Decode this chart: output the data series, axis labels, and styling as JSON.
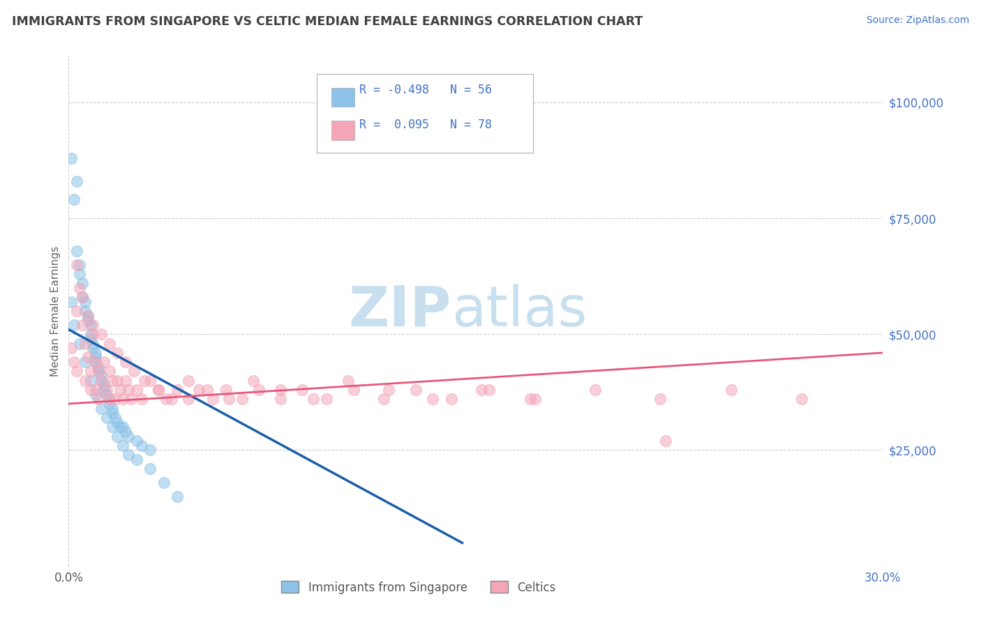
{
  "title": "IMMIGRANTS FROM SINGAPORE VS CELTIC MEDIAN FEMALE EARNINGS CORRELATION CHART",
  "source": "Source: ZipAtlas.com",
  "ylabel": "Median Female Earnings",
  "xlim": [
    0.0,
    0.3
  ],
  "ylim": [
    0,
    110000
  ],
  "ytick_positions": [
    0,
    25000,
    50000,
    75000,
    100000
  ],
  "ytick_labels": [
    "",
    "$25,000",
    "$50,000",
    "$75,000",
    "$100,000"
  ],
  "legend_r1": "R = -0.498",
  "legend_n1": "N = 56",
  "legend_r2": "R =  0.095",
  "legend_n2": "N = 78",
  "color_blue": "#8dc3e8",
  "color_pink": "#f4a6b8",
  "color_blue_line": "#1a5fa8",
  "color_pink_line": "#e8567a",
  "color_title": "#404040",
  "color_axis_label": "#666666",
  "color_source": "#4472c4",
  "color_ytick_label": "#4472c4",
  "color_xtick_right": "#4472c4",
  "color_xtick_left": "#555555",
  "watermark_color": "#c8dff0",
  "background_color": "#ffffff",
  "grid_color": "#cccccc",
  "sg_x": [
    0.001,
    0.003,
    0.002,
    0.003,
    0.004,
    0.004,
    0.005,
    0.005,
    0.006,
    0.006,
    0.007,
    0.007,
    0.008,
    0.008,
    0.008,
    0.009,
    0.009,
    0.01,
    0.01,
    0.01,
    0.011,
    0.011,
    0.012,
    0.012,
    0.013,
    0.013,
    0.014,
    0.015,
    0.015,
    0.016,
    0.016,
    0.017,
    0.018,
    0.019,
    0.02,
    0.021,
    0.022,
    0.025,
    0.027,
    0.03,
    0.001,
    0.002,
    0.004,
    0.006,
    0.008,
    0.01,
    0.012,
    0.014,
    0.016,
    0.018,
    0.02,
    0.022,
    0.025,
    0.03,
    0.035,
    0.04
  ],
  "sg_y": [
    88000,
    83000,
    79000,
    68000,
    65000,
    63000,
    61000,
    58000,
    57000,
    55000,
    54000,
    53000,
    52000,
    50000,
    49000,
    48000,
    47000,
    46000,
    45000,
    44000,
    43000,
    42000,
    41000,
    40000,
    39000,
    38000,
    37000,
    36000,
    35000,
    34000,
    33000,
    32000,
    31000,
    30000,
    30000,
    29000,
    28000,
    27000,
    26000,
    25000,
    57000,
    52000,
    48000,
    44000,
    40000,
    37000,
    34000,
    32000,
    30000,
    28000,
    26000,
    24000,
    23000,
    21000,
    18000,
    15000
  ],
  "celt_x": [
    0.001,
    0.002,
    0.003,
    0.003,
    0.004,
    0.005,
    0.006,
    0.006,
    0.007,
    0.008,
    0.008,
    0.009,
    0.01,
    0.01,
    0.011,
    0.011,
    0.012,
    0.013,
    0.014,
    0.015,
    0.015,
    0.016,
    0.017,
    0.018,
    0.019,
    0.02,
    0.021,
    0.022,
    0.023,
    0.025,
    0.027,
    0.03,
    0.033,
    0.036,
    0.04,
    0.044,
    0.048,
    0.053,
    0.058,
    0.064,
    0.07,
    0.078,
    0.086,
    0.095,
    0.105,
    0.116,
    0.128,
    0.141,
    0.155,
    0.17,
    0.003,
    0.005,
    0.007,
    0.009,
    0.012,
    0.015,
    0.018,
    0.021,
    0.024,
    0.028,
    0.033,
    0.038,
    0.044,
    0.051,
    0.059,
    0.068,
    0.078,
    0.09,
    0.103,
    0.118,
    0.134,
    0.152,
    0.172,
    0.194,
    0.218,
    0.244,
    0.27,
    0.22
  ],
  "celt_y": [
    47000,
    44000,
    42000,
    55000,
    60000,
    52000,
    48000,
    40000,
    45000,
    42000,
    38000,
    50000,
    44000,
    38000,
    42000,
    36000,
    40000,
    44000,
    38000,
    42000,
    36000,
    40000,
    36000,
    40000,
    38000,
    36000,
    40000,
    38000,
    36000,
    38000,
    36000,
    40000,
    38000,
    36000,
    38000,
    36000,
    38000,
    36000,
    38000,
    36000,
    38000,
    36000,
    38000,
    36000,
    38000,
    36000,
    38000,
    36000,
    38000,
    36000,
    65000,
    58000,
    54000,
    52000,
    50000,
    48000,
    46000,
    44000,
    42000,
    40000,
    38000,
    36000,
    40000,
    38000,
    36000,
    40000,
    38000,
    36000,
    40000,
    38000,
    36000,
    38000,
    36000,
    38000,
    36000,
    38000,
    36000,
    27000
  ],
  "sg_line_x0": 0.0,
  "sg_line_x1": 0.145,
  "sg_line_y0": 51000,
  "sg_line_y1": 5000,
  "celt_line_x0": 0.0,
  "celt_line_x1": 0.3,
  "celt_line_y0": 35000,
  "celt_line_y1": 46000
}
